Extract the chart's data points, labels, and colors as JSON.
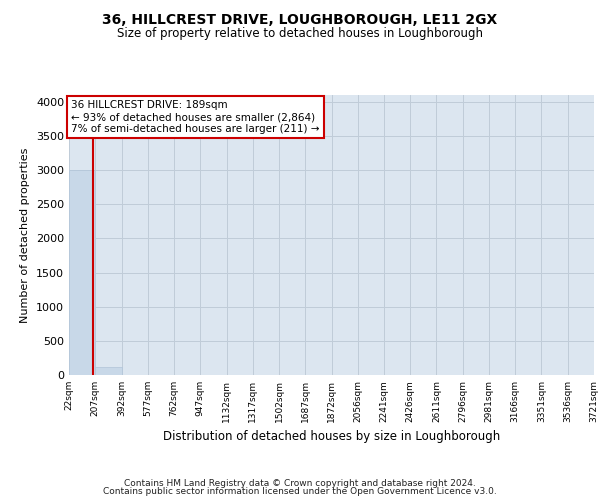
{
  "title": "36, HILLCREST DRIVE, LOUGHBOROUGH, LE11 2GX",
  "subtitle": "Size of property relative to detached houses in Loughborough",
  "xlabel": "Distribution of detached houses by size in Loughborough",
  "ylabel": "Number of detached properties",
  "footnote1": "Contains HM Land Registry data © Crown copyright and database right 2024.",
  "footnote2": "Contains public sector information licensed under the Open Government Licence v3.0.",
  "bar_color": "#c8d8e8",
  "bar_edge_color": "#b0c4d8",
  "grid_color": "#c0ccd8",
  "background_color": "#dce6f0",
  "annotation_line1": "36 HILLCREST DRIVE: 189sqm",
  "annotation_line2": "← 93% of detached houses are smaller (2,864)",
  "annotation_line3": "7% of semi-detached houses are larger (211) →",
  "vline_color": "#cc0000",
  "vline_x": 189,
  "categories": [
    "22sqm",
    "207sqm",
    "392sqm",
    "577sqm",
    "762sqm",
    "947sqm",
    "1132sqm",
    "1317sqm",
    "1502sqm",
    "1687sqm",
    "1872sqm",
    "2056sqm",
    "2241sqm",
    "2426sqm",
    "2611sqm",
    "2796sqm",
    "2981sqm",
    "3166sqm",
    "3351sqm",
    "3536sqm",
    "3721sqm"
  ],
  "bin_edges": [
    22,
    207,
    392,
    577,
    762,
    947,
    1132,
    1317,
    1502,
    1687,
    1872,
    2056,
    2241,
    2426,
    2611,
    2796,
    2981,
    3166,
    3351,
    3536,
    3721
  ],
  "bar_heights": [
    3000,
    110,
    5,
    2,
    1,
    1,
    0,
    0,
    0,
    0,
    0,
    0,
    0,
    0,
    0,
    0,
    0,
    0,
    0,
    0
  ],
  "ylim": [
    0,
    4100
  ],
  "yticks": [
    0,
    500,
    1000,
    1500,
    2000,
    2500,
    3000,
    3500,
    4000
  ]
}
